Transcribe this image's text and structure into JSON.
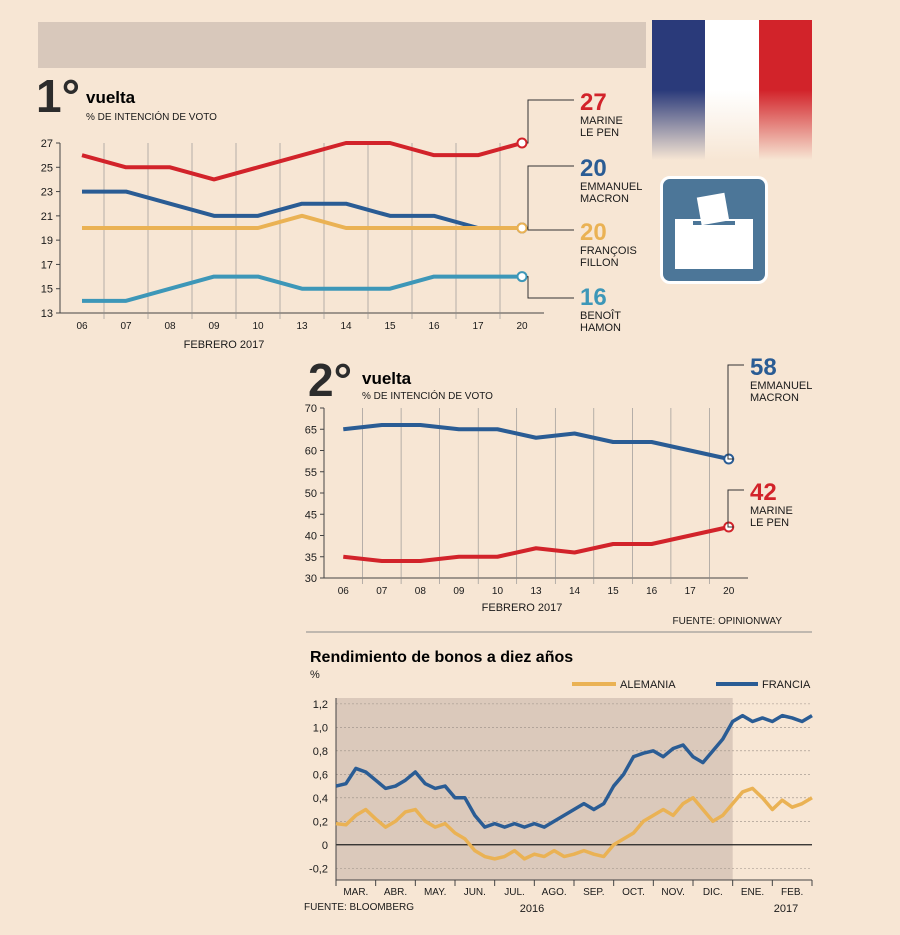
{
  "colors": {
    "red": "#d2232a",
    "blue": "#2a5c94",
    "yellow": "#eab254",
    "teal": "#3d97b8",
    "flag_blue": "#2a3a7a",
    "flag_white": "#ffffff",
    "flag_red": "#d2232a",
    "shade": "#dbc9bb"
  },
  "icons": {
    "flag": "french-flag-icon",
    "ballot": "ballot-box-icon"
  },
  "chart_data": [
    {
      "type": "line",
      "title_number": "1°",
      "title_word": "vuelta",
      "subtitle": "% DE INTENCIÓN DE VOTO",
      "xlabel": "FEBRERO 2017",
      "categories": [
        "06",
        "07",
        "08",
        "09",
        "10",
        "13",
        "14",
        "15",
        "16",
        "17",
        "20"
      ],
      "yticks": [
        "27",
        "25",
        "23",
        "21",
        "19",
        "17",
        "15",
        "13"
      ],
      "ylim": [
        13,
        27
      ],
      "series": [
        {
          "name": "MARINE LE PEN",
          "name_lines": [
            "MARINE",
            "LE PEN"
          ],
          "final_label": "27",
          "color": "#d2232a",
          "values": [
            26,
            25,
            25,
            24,
            25,
            26,
            27,
            27,
            26,
            26,
            27
          ]
        },
        {
          "name": "EMMANUEL MACRON",
          "name_lines": [
            "EMMANUEL",
            "MACRON"
          ],
          "final_label": "20",
          "color": "#2a5c94",
          "values": [
            23,
            23,
            22,
            21,
            21,
            22,
            22,
            21,
            21,
            20,
            20
          ]
        },
        {
          "name": "FRANÇOIS FILLON",
          "name_lines": [
            "FRANÇOIS",
            "FILLON"
          ],
          "final_label": "20",
          "color": "#eab254",
          "values": [
            20,
            20,
            20,
            20,
            20,
            21,
            20,
            20,
            20,
            20,
            20
          ]
        },
        {
          "name": "BENOÎT HAMON",
          "name_lines": [
            "BENOÎT",
            "HAMON"
          ],
          "final_label": "16",
          "color": "#3d97b8",
          "values": [
            14,
            14,
            15,
            16,
            16,
            15,
            15,
            15,
            16,
            16,
            16
          ]
        }
      ]
    },
    {
      "type": "line",
      "title_number": "2°",
      "title_word": "vuelta",
      "subtitle": "% DE INTENCIÓN DE VOTO",
      "xlabel": "FEBRERO 2017",
      "source": "FUENTE: OPINIONWAY",
      "categories": [
        "06",
        "07",
        "08",
        "09",
        "10",
        "13",
        "14",
        "15",
        "16",
        "17",
        "20"
      ],
      "yticks": [
        "70",
        "65",
        "60",
        "55",
        "50",
        "45",
        "40",
        "35",
        "30"
      ],
      "ylim": [
        30,
        70
      ],
      "series": [
        {
          "name": "EMMANUEL MACRON",
          "name_lines": [
            "EMMANUEL",
            "MACRON"
          ],
          "final_label": "58",
          "color": "#2a5c94",
          "values": [
            65,
            66,
            66,
            65,
            65,
            63,
            64,
            62,
            62,
            60,
            58
          ]
        },
        {
          "name": "MARINE LE PEN",
          "name_lines": [
            "MARINE",
            "LE PEN"
          ],
          "final_label": "42",
          "color": "#d2232a",
          "values": [
            35,
            34,
            34,
            35,
            35,
            37,
            36,
            38,
            38,
            40,
            42
          ]
        }
      ]
    },
    {
      "type": "line",
      "title": "Rendimiento de bonos a diez años",
      "ylabel": "%",
      "source": "FUENTE: BLOOMBERG",
      "months": [
        "MAR.",
        "ABR.",
        "MAY.",
        "JUN.",
        "JUL.",
        "AGO.",
        "SEP.",
        "OCT.",
        "NOV.",
        "DIC.",
        "ENE.",
        "FEB."
      ],
      "year_labels": [
        "2016",
        "2017"
      ],
      "yticks": [
        "1,2",
        "1,0",
        "0,8",
        "0,6",
        "0,4",
        "0,2",
        "0",
        "-0,2"
      ],
      "ylim": [
        -0.3,
        1.25
      ],
      "x": [
        0,
        0.25,
        0.5,
        0.75,
        1,
        1.25,
        1.5,
        1.75,
        2,
        2.25,
        2.5,
        2.75,
        3,
        3.25,
        3.5,
        3.75,
        4,
        4.25,
        4.5,
        4.75,
        5,
        5.25,
        5.5,
        5.75,
        6,
        6.25,
        6.5,
        6.75,
        7,
        7.25,
        7.5,
        7.75,
        8,
        8.25,
        8.5,
        8.75,
        9,
        9.25,
        9.5,
        9.75,
        10,
        10.25,
        10.5,
        10.75,
        11,
        11.25,
        11.5,
        11.75,
        12
      ],
      "series": [
        {
          "name": "ALEMANIA",
          "color": "#eab254",
          "values": [
            0.18,
            0.17,
            0.25,
            0.3,
            0.22,
            0.15,
            0.2,
            0.28,
            0.3,
            0.2,
            0.15,
            0.18,
            0.1,
            0.05,
            -0.05,
            -0.1,
            -0.12,
            -0.1,
            -0.05,
            -0.12,
            -0.08,
            -0.1,
            -0.05,
            -0.1,
            -0.08,
            -0.05,
            -0.08,
            -0.1,
            0.0,
            0.05,
            0.1,
            0.2,
            0.25,
            0.3,
            0.25,
            0.35,
            0.4,
            0.3,
            0.2,
            0.25,
            0.35,
            0.45,
            0.48,
            0.4,
            0.3,
            0.38,
            0.32,
            0.35,
            0.4
          ]
        },
        {
          "name": "FRANCIA",
          "color": "#2a5c94",
          "values": [
            0.5,
            0.52,
            0.65,
            0.62,
            0.55,
            0.48,
            0.5,
            0.55,
            0.62,
            0.52,
            0.48,
            0.5,
            0.4,
            0.4,
            0.25,
            0.15,
            0.18,
            0.15,
            0.18,
            0.15,
            0.18,
            0.15,
            0.2,
            0.25,
            0.3,
            0.35,
            0.3,
            0.35,
            0.5,
            0.6,
            0.75,
            0.78,
            0.8,
            0.75,
            0.82,
            0.85,
            0.75,
            0.7,
            0.8,
            0.9,
            1.05,
            1.1,
            1.05,
            1.08,
            1.05,
            1.1,
            1.08,
            1.05,
            1.1
          ]
        }
      ]
    }
  ]
}
